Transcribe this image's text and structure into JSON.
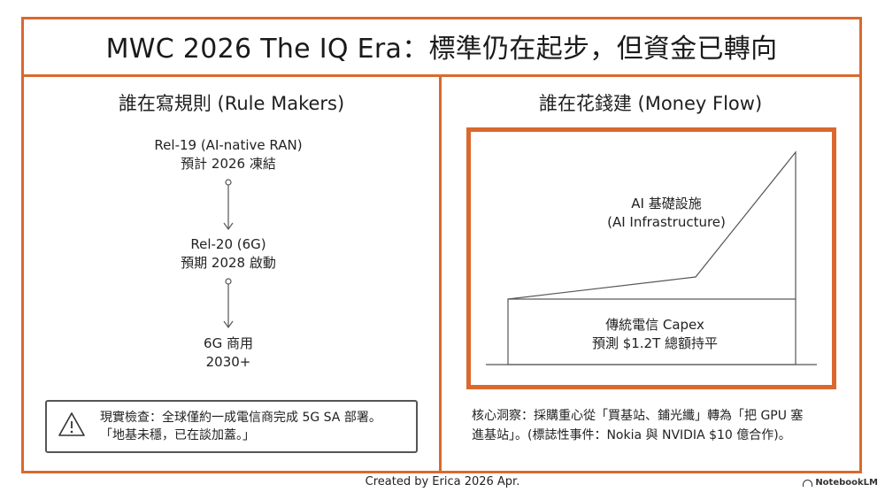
{
  "title": "MWC 2026 The IQ Era：標準仍在起步，但資金已轉向",
  "left_panel": {
    "heading": "誰在寫規則 (Rule Makers)",
    "steps": [
      {
        "line1": "Rel-19 (AI-native RAN)",
        "line2": "預計 2026 凍結"
      },
      {
        "line1": "Rel-20 (6G)",
        "line2": "預期 2028 啟動"
      },
      {
        "line1": "6G 商用",
        "line2": "2030+"
      }
    ],
    "warning": {
      "icon": "warning-triangle-icon",
      "line1": "現實檢查：全球僅約一成電信商完成 5G SA 部署。",
      "line2": "「地基未穩，已在談加蓋。」"
    }
  },
  "right_panel": {
    "heading": "誰在花錢建 (Money Flow)",
    "ai_label": {
      "line1": "AI 基礎設施",
      "line2": "(AI Infrastructure)"
    },
    "telecom_label": {
      "line1": "傳統電信 Capex",
      "line2": "預測 $1.2T 總額持平"
    },
    "insight": {
      "line1": "核心洞察：採購重心從「買基站、鋪光纖」轉為「把 GPU 塞",
      "line2": "進基站」。(標誌性事件：Nokia 與 NVIDIA $10 億合作)。"
    }
  },
  "footer": {
    "credit": "Created by Erica 2026 Apr.",
    "brand": "NotebookLM"
  },
  "colors": {
    "accent": "#d9692e",
    "text": "#1f1f1f",
    "lines": "#555555"
  }
}
